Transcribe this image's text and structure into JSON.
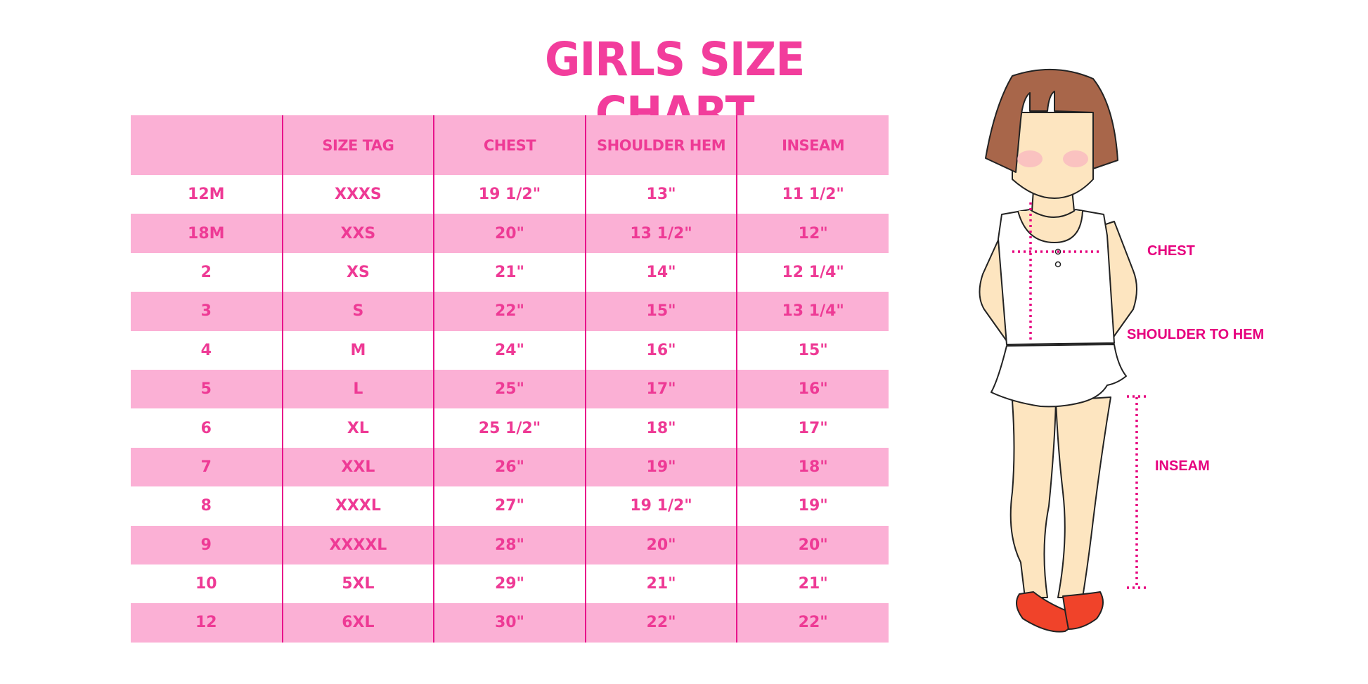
{
  "title": "GIRLS SIZE CHART",
  "table": {
    "headers": [
      "",
      "SIZE TAG",
      "CHEST",
      "SHOULDER HEM",
      "INSEAM"
    ],
    "rows": [
      [
        "12M",
        "XXXS",
        "19 1/2\"",
        "13\"",
        "11 1/2\""
      ],
      [
        "18M",
        "XXS",
        "20\"",
        "13 1/2\"",
        "12\""
      ],
      [
        "2",
        "XS",
        "21\"",
        "14\"",
        "12 1/4\""
      ],
      [
        "3",
        "S",
        "22\"",
        "15\"",
        "13 1/4\""
      ],
      [
        "4",
        "M",
        "24\"",
        "16\"",
        "15\""
      ],
      [
        "5",
        "L",
        "25\"",
        "17\"",
        "16\""
      ],
      [
        "6",
        "XL",
        "25 1/2\"",
        "18\"",
        "17\""
      ],
      [
        "7",
        "XXL",
        "26\"",
        "19\"",
        "18\""
      ],
      [
        "8",
        "XXXL",
        "27\"",
        "19 1/2\"",
        "19\""
      ],
      [
        "9",
        "XXXXL",
        "28\"",
        "20\"",
        "20\""
      ],
      [
        "10",
        "5XL",
        "29\"",
        "21\"",
        "21\""
      ],
      [
        "12",
        "6XL",
        "30\"",
        "22\"",
        "22\""
      ]
    ]
  },
  "figure": {
    "labels": {
      "chest": "CHEST",
      "shoulder_to_hem": "SHOULDER TO HEM",
      "inseam": "INSEAM"
    }
  },
  "colors": {
    "title": "#f23d9c",
    "header_bg": "#fbb0d5",
    "text": "#ee3a95",
    "divider": "#e8138b",
    "measure": "#e6007e"
  }
}
